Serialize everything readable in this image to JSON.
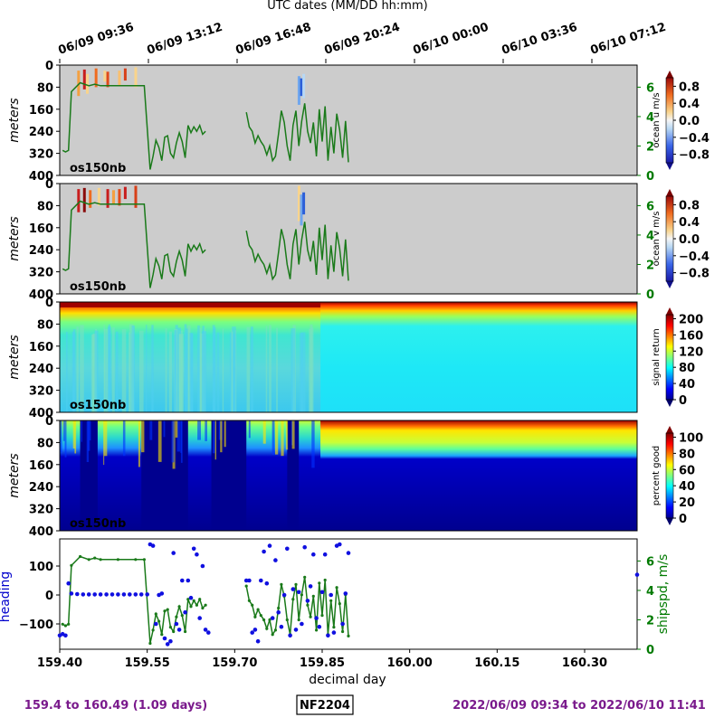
{
  "header": {
    "top_axis_title": "UTC dates (MM/DD hh:mm)",
    "top_ticks": [
      {
        "x": 159.4,
        "label": "06/09 09:36"
      },
      {
        "x": 159.5,
        "label": "06/09 13:12"
      },
      {
        "x": 159.6,
        "label": "06/09 16:48"
      },
      {
        "x": 159.7,
        "label": "06/09 20:24"
      },
      {
        "x": 159.8,
        "label": "06/10 00:00"
      },
      {
        "x": 159.9,
        "label": "06/10 03:36"
      },
      {
        "x": 160.0,
        "label": "06/10 07:12"
      }
    ]
  },
  "footer": {
    "left_range": "159.4 to 160.49 (1.09 days)",
    "cruise_id": "NF2204",
    "right_range": "2022/06/09 09:34 to 2022/06/10 11:41"
  },
  "chart_data": [
    {
      "type": "heatmap",
      "panel": "ocean-u",
      "ylabel": "meters",
      "tag": "os150nb",
      "yticks": [
        0,
        80,
        160,
        240,
        320,
        400
      ],
      "ylim": [
        400,
        0
      ],
      "right_axis_ticks": [
        0,
        2,
        4,
        6
      ],
      "colorbar_label": "ocean u m/s",
      "colorbar_ticks": [
        "0.8",
        "0.4",
        "0.0",
        "−0.4",
        "−0.8"
      ],
      "colorbar_range": [
        -1,
        1
      ]
    },
    {
      "type": "heatmap",
      "panel": "ocean-v",
      "ylabel": "meters",
      "tag": "os150nb",
      "yticks": [
        0,
        80,
        160,
        240,
        320,
        400
      ],
      "ylim": [
        400,
        0
      ],
      "right_axis_ticks": [
        0,
        2,
        4,
        6
      ],
      "colorbar_label": "ocean v m/s",
      "colorbar_ticks": [
        "0.8",
        "0.4",
        "0.0",
        "−0.4",
        "−0.8"
      ],
      "colorbar_range": [
        -1,
        1
      ]
    },
    {
      "type": "heatmap",
      "panel": "signal-return",
      "ylabel": "meters",
      "tag": "os150nb",
      "yticks": [
        0,
        80,
        160,
        240,
        320,
        400
      ],
      "ylim": [
        400,
        0
      ],
      "colorbar_label": "signal return",
      "colorbar_ticks": [
        "200",
        "160",
        "120",
        "80",
        "40",
        "0"
      ],
      "colorbar_range": [
        0,
        210
      ]
    },
    {
      "type": "heatmap",
      "panel": "percent-good",
      "ylabel": "meters",
      "tag": "os150nb",
      "yticks": [
        0,
        80,
        160,
        240,
        320,
        400
      ],
      "ylim": [
        400,
        0
      ],
      "colorbar_label": "percent good",
      "colorbar_ticks": [
        "100",
        "80",
        "60",
        "40",
        "20",
        "0"
      ],
      "colorbar_range": [
        0,
        105
      ]
    },
    {
      "type": "scatter",
      "panel": "heading-shipspd",
      "xlabel": "decimal day",
      "xticks": [
        "159.40",
        "159.55",
        "159.70",
        "159.85",
        "160.00",
        "160.15",
        "160.30"
      ],
      "xlim": [
        159.4,
        160.39
      ],
      "ylabel_left": "heading",
      "yticks_left": [
        "100",
        "0",
        "−100"
      ],
      "ylabel_right": "shipspd, m/s",
      "yticks_right": [
        "0",
        "2",
        "4",
        "6"
      ],
      "shipspd": [
        [
          159.405,
          1.7
        ],
        [
          159.41,
          1.6
        ],
        [
          159.415,
          1.7
        ],
        [
          159.42,
          5.7
        ],
        [
          159.435,
          6.3
        ],
        [
          159.45,
          6.1
        ],
        [
          159.46,
          6.2
        ],
        [
          159.47,
          6.1
        ],
        [
          159.5,
          6.1
        ],
        [
          159.53,
          6.1
        ],
        [
          159.545,
          6.1
        ],
        [
          159.555,
          0.4
        ],
        [
          159.56,
          1.3
        ],
        [
          159.565,
          2.4
        ],
        [
          159.57,
          1.9
        ],
        [
          159.575,
          1.0
        ],
        [
          159.58,
          2.6
        ],
        [
          159.585,
          2.7
        ],
        [
          159.59,
          1.5
        ],
        [
          159.595,
          1.2
        ],
        [
          159.6,
          2.2
        ],
        [
          159.605,
          2.9
        ],
        [
          159.61,
          2.3
        ],
        [
          159.615,
          1.2
        ],
        [
          159.62,
          3.4
        ],
        [
          159.625,
          2.9
        ],
        [
          159.63,
          3.3
        ],
        [
          159.635,
          3.0
        ],
        [
          159.64,
          3.4
        ],
        [
          159.645,
          2.8
        ],
        [
          159.65,
          3.0
        ]
      ],
      "shipspd_segment2": [
        [
          159.72,
          4.3
        ],
        [
          159.725,
          3.3
        ],
        [
          159.73,
          3.0
        ],
        [
          159.735,
          2.2
        ],
        [
          159.74,
          2.7
        ],
        [
          159.745,
          2.3
        ],
        [
          159.75,
          2.0
        ],
        [
          159.755,
          1.4
        ],
        [
          159.76,
          2.0
        ],
        [
          159.765,
          1.0
        ],
        [
          159.77,
          1.3
        ],
        [
          159.775,
          2.8
        ],
        [
          159.78,
          4.4
        ],
        [
          159.785,
          3.6
        ],
        [
          159.79,
          2.0
        ],
        [
          159.795,
          1.0
        ],
        [
          159.8,
          3.4
        ],
        [
          159.805,
          4.4
        ],
        [
          159.81,
          2.0
        ],
        [
          159.815,
          3.7
        ],
        [
          159.82,
          4.9
        ],
        [
          159.825,
          3.0
        ],
        [
          159.83,
          2.2
        ],
        [
          159.835,
          3.6
        ],
        [
          159.84,
          1.3
        ],
        [
          159.845,
          4.5
        ],
        [
          159.85,
          2.3
        ],
        [
          159.855,
          4.7
        ],
        [
          159.86,
          1.0
        ],
        [
          159.865,
          3.3
        ],
        [
          159.87,
          1.5
        ],
        [
          159.875,
          4.2
        ],
        [
          159.88,
          3.1
        ],
        [
          159.885,
          1.2
        ],
        [
          159.89,
          3.7
        ],
        [
          159.895,
          0.9
        ]
      ],
      "heading": [
        [
          159.4,
          -140
        ],
        [
          159.405,
          -135
        ],
        [
          159.41,
          -140
        ],
        [
          159.415,
          40
        ],
        [
          159.42,
          5
        ],
        [
          159.43,
          3
        ],
        [
          159.44,
          2
        ],
        [
          159.45,
          2
        ],
        [
          159.46,
          2
        ],
        [
          159.47,
          2
        ],
        [
          159.48,
          2
        ],
        [
          159.49,
          2
        ],
        [
          159.5,
          2
        ],
        [
          159.51,
          2
        ],
        [
          159.52,
          2
        ],
        [
          159.53,
          2
        ],
        [
          159.54,
          2
        ],
        [
          159.55,
          2
        ],
        [
          159.555,
          175
        ],
        [
          159.56,
          170
        ],
        [
          159.565,
          -100
        ],
        [
          159.57,
          0
        ],
        [
          159.575,
          5
        ],
        [
          159.58,
          -150
        ],
        [
          159.585,
          -170
        ],
        [
          159.59,
          -160
        ],
        [
          159.595,
          145
        ],
        [
          159.6,
          -100
        ],
        [
          159.605,
          -120
        ],
        [
          159.61,
          50
        ],
        [
          159.615,
          -60
        ],
        [
          159.62,
          50
        ],
        [
          159.625,
          -10
        ],
        [
          159.63,
          160
        ],
        [
          159.635,
          140
        ],
        [
          159.64,
          -80
        ],
        [
          159.645,
          100
        ],
        [
          159.65,
          -120
        ],
        [
          159.655,
          -130
        ],
        [
          159.72,
          50
        ],
        [
          159.725,
          50
        ],
        [
          159.73,
          -130
        ],
        [
          159.735,
          -120
        ],
        [
          159.74,
          -160
        ],
        [
          159.745,
          50
        ],
        [
          159.75,
          150
        ],
        [
          159.755,
          40
        ],
        [
          159.76,
          170
        ],
        [
          159.765,
          -80
        ],
        [
          159.77,
          120
        ],
        [
          159.775,
          -60
        ],
        [
          159.78,
          -110
        ],
        [
          159.785,
          0
        ],
        [
          159.79,
          160
        ],
        [
          159.795,
          -140
        ],
        [
          159.8,
          20
        ],
        [
          159.805,
          -120
        ],
        [
          159.81,
          10
        ],
        [
          159.815,
          -100
        ],
        [
          159.82,
          165
        ],
        [
          159.825,
          -20
        ],
        [
          159.83,
          30
        ],
        [
          159.835,
          140
        ],
        [
          159.84,
          -80
        ],
        [
          159.845,
          -110
        ],
        [
          159.85,
          10
        ],
        [
          159.855,
          140
        ],
        [
          159.86,
          -140
        ],
        [
          159.865,
          0
        ],
        [
          159.87,
          -130
        ],
        [
          159.875,
          170
        ],
        [
          159.88,
          175
        ],
        [
          159.885,
          -100
        ],
        [
          159.89,
          5
        ],
        [
          159.895,
          145
        ],
        [
          160.39,
          70
        ]
      ]
    }
  ]
}
